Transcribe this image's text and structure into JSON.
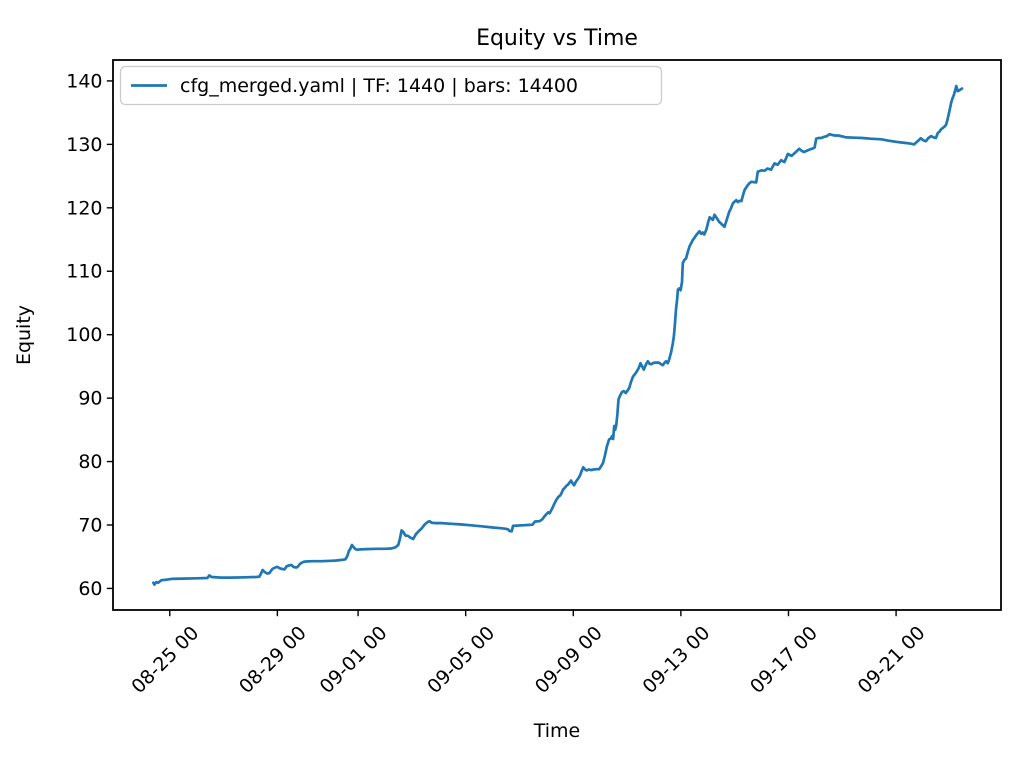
{
  "figure": {
    "title": "Equity vs Time",
    "xlabel": "Time",
    "ylabel": "Equity",
    "background": "#ffffff"
  },
  "legend": {
    "position": "upper left",
    "entries": [
      {
        "label": "cfg_merged.yaml | TF: 1440 | bars: 14400",
        "color": "#1f77b4"
      }
    ]
  },
  "chart_data": {
    "type": "line",
    "title": "Equity vs Time",
    "xlabel": "Time",
    "ylabel": "Equity",
    "grid": false,
    "legend_position": "upper left",
    "x_axis": {
      "note": "x in days, 0 = 08-24 00:00",
      "lim": [
        -1.11,
        31.9
      ],
      "ticks": [
        {
          "x": 1,
          "label": "08-25 00"
        },
        {
          "x": 5,
          "label": "08-29 00"
        },
        {
          "x": 8,
          "label": "09-01 00"
        },
        {
          "x": 12,
          "label": "09-05 00"
        },
        {
          "x": 16,
          "label": "09-09 00"
        },
        {
          "x": 20,
          "label": "09-13 00"
        },
        {
          "x": 24,
          "label": "09-17 00"
        },
        {
          "x": 28,
          "label": "09-21 00"
        }
      ],
      "tick_rotation_deg": 45
    },
    "y_axis": {
      "lim": [
        56.6,
        143.3
      ],
      "ticks": [
        60,
        70,
        80,
        90,
        100,
        110,
        120,
        130,
        140
      ]
    },
    "series": [
      {
        "name": "cfg_merged.yaml | TF: 1440 | bars: 14400",
        "color": "#1f77b4",
        "line_width": 2.7,
        "points": [
          [
            0.39,
            60.9
          ],
          [
            0.43,
            60.6
          ],
          [
            0.5,
            61.0
          ],
          [
            0.57,
            60.9
          ],
          [
            0.69,
            61.3
          ],
          [
            0.9,
            61.4
          ],
          [
            1.06,
            61.5
          ],
          [
            1.5,
            61.55
          ],
          [
            2.0,
            61.6
          ],
          [
            2.4,
            61.65
          ],
          [
            2.47,
            62.05
          ],
          [
            2.55,
            61.8
          ],
          [
            2.9,
            61.7
          ],
          [
            3.29,
            61.7
          ],
          [
            3.8,
            61.75
          ],
          [
            4.2,
            61.8
          ],
          [
            4.33,
            61.85
          ],
          [
            4.4,
            62.4
          ],
          [
            4.45,
            62.9
          ],
          [
            4.52,
            62.6
          ],
          [
            4.62,
            62.35
          ],
          [
            4.7,
            62.4
          ],
          [
            4.82,
            63.1
          ],
          [
            4.95,
            63.35
          ],
          [
            5.0,
            63.4
          ],
          [
            5.1,
            63.15
          ],
          [
            5.2,
            63.05
          ],
          [
            5.26,
            63.0
          ],
          [
            5.35,
            63.5
          ],
          [
            5.45,
            63.65
          ],
          [
            5.52,
            63.7
          ],
          [
            5.6,
            63.4
          ],
          [
            5.68,
            63.3
          ],
          [
            5.74,
            63.35
          ],
          [
            5.85,
            63.9
          ],
          [
            5.95,
            64.15
          ],
          [
            6.05,
            64.25
          ],
          [
            6.3,
            64.3
          ],
          [
            6.64,
            64.3
          ],
          [
            7.0,
            64.35
          ],
          [
            7.19,
            64.4
          ],
          [
            7.4,
            64.5
          ],
          [
            7.53,
            64.6
          ],
          [
            7.6,
            65.1
          ],
          [
            7.66,
            65.9
          ],
          [
            7.72,
            66.3
          ],
          [
            7.77,
            66.85
          ],
          [
            7.82,
            66.6
          ],
          [
            7.9,
            66.2
          ],
          [
            7.97,
            66.1
          ],
          [
            8.1,
            66.15
          ],
          [
            8.31,
            66.2
          ],
          [
            8.7,
            66.25
          ],
          [
            9.0,
            66.25
          ],
          [
            9.24,
            66.3
          ],
          [
            9.4,
            66.5
          ],
          [
            9.5,
            66.9
          ],
          [
            9.56,
            67.9
          ],
          [
            9.62,
            69.15
          ],
          [
            9.68,
            68.9
          ],
          [
            9.76,
            68.35
          ],
          [
            9.85,
            68.3
          ],
          [
            9.95,
            68.0
          ],
          [
            10.05,
            67.8
          ],
          [
            10.15,
            68.55
          ],
          [
            10.25,
            69.0
          ],
          [
            10.35,
            69.4
          ],
          [
            10.48,
            70.1
          ],
          [
            10.58,
            70.45
          ],
          [
            10.65,
            70.6
          ],
          [
            10.75,
            70.35
          ],
          [
            10.9,
            70.3
          ],
          [
            11.1,
            70.3
          ],
          [
            11.4,
            70.2
          ],
          [
            11.8,
            70.1
          ],
          [
            12.2,
            69.95
          ],
          [
            12.6,
            69.8
          ],
          [
            13.0,
            69.6
          ],
          [
            13.3,
            69.5
          ],
          [
            13.5,
            69.4
          ],
          [
            13.58,
            69.3
          ],
          [
            13.63,
            69.05
          ],
          [
            13.71,
            69.0
          ],
          [
            13.76,
            69.85
          ],
          [
            13.9,
            69.9
          ],
          [
            14.1,
            69.95
          ],
          [
            14.3,
            70.0
          ],
          [
            14.48,
            70.05
          ],
          [
            14.58,
            70.55
          ],
          [
            14.75,
            70.6
          ],
          [
            14.85,
            70.9
          ],
          [
            14.92,
            71.3
          ],
          [
            15.0,
            71.7
          ],
          [
            15.07,
            72.0
          ],
          [
            15.12,
            71.85
          ],
          [
            15.18,
            72.3
          ],
          [
            15.24,
            72.8
          ],
          [
            15.29,
            73.3
          ],
          [
            15.36,
            73.9
          ],
          [
            15.44,
            74.4
          ],
          [
            15.5,
            74.6
          ],
          [
            15.55,
            74.9
          ],
          [
            15.62,
            75.6
          ],
          [
            15.68,
            75.85
          ],
          [
            15.75,
            76.2
          ],
          [
            15.81,
            76.4
          ],
          [
            15.88,
            76.8
          ],
          [
            15.92,
            77.0
          ],
          [
            15.97,
            76.6
          ],
          [
            16.03,
            76.25
          ],
          [
            16.1,
            76.85
          ],
          [
            16.18,
            77.3
          ],
          [
            16.25,
            77.8
          ],
          [
            16.31,
            78.5
          ],
          [
            16.37,
            79.1
          ],
          [
            16.44,
            78.75
          ],
          [
            16.5,
            78.6
          ],
          [
            16.58,
            78.75
          ],
          [
            16.66,
            78.65
          ],
          [
            16.76,
            78.75
          ],
          [
            16.86,
            78.8
          ],
          [
            16.96,
            78.8
          ],
          [
            17.04,
            79.3
          ],
          [
            17.11,
            79.8
          ],
          [
            17.18,
            81.0
          ],
          [
            17.25,
            82.4
          ],
          [
            17.33,
            83.5
          ],
          [
            17.39,
            83.6
          ],
          [
            17.44,
            84.0
          ],
          [
            17.48,
            83.55
          ],
          [
            17.52,
            85.6
          ],
          [
            17.56,
            85.0
          ],
          [
            17.6,
            85.8
          ],
          [
            17.64,
            87.5
          ],
          [
            17.68,
            89.8
          ],
          [
            17.75,
            90.5
          ],
          [
            17.82,
            91.0
          ],
          [
            17.88,
            91.1
          ],
          [
            17.95,
            90.8
          ],
          [
            18.02,
            91.2
          ],
          [
            18.08,
            91.6
          ],
          [
            18.15,
            92.6
          ],
          [
            18.22,
            93.4
          ],
          [
            18.33,
            94.0
          ],
          [
            18.43,
            94.7
          ],
          [
            18.5,
            95.5
          ],
          [
            18.56,
            95.0
          ],
          [
            18.62,
            94.5
          ],
          [
            18.7,
            95.3
          ],
          [
            18.77,
            95.8
          ],
          [
            18.84,
            95.4
          ],
          [
            18.9,
            95.35
          ],
          [
            18.98,
            95.55
          ],
          [
            19.08,
            95.6
          ],
          [
            19.18,
            95.6
          ],
          [
            19.26,
            95.35
          ],
          [
            19.33,
            95.2
          ],
          [
            19.4,
            95.6
          ],
          [
            19.45,
            95.8
          ],
          [
            19.51,
            95.5
          ],
          [
            19.56,
            96.0
          ],
          [
            19.64,
            97.3
          ],
          [
            19.7,
            98.6
          ],
          [
            19.74,
            99.8
          ],
          [
            19.78,
            101.8
          ],
          [
            19.82,
            104.0
          ],
          [
            19.86,
            105.5
          ],
          [
            19.89,
            107.1
          ],
          [
            19.94,
            107.3
          ],
          [
            19.99,
            107.0
          ],
          [
            20.04,
            108.3
          ],
          [
            20.07,
            111.3
          ],
          [
            20.1,
            111.5
          ],
          [
            20.13,
            111.8
          ],
          [
            20.19,
            112.0
          ],
          [
            20.26,
            113.1
          ],
          [
            20.32,
            113.9
          ],
          [
            20.38,
            114.4
          ],
          [
            20.44,
            114.9
          ],
          [
            20.51,
            115.3
          ],
          [
            20.57,
            115.7
          ],
          [
            20.63,
            116.0
          ],
          [
            20.69,
            116.3
          ],
          [
            20.75,
            115.9
          ],
          [
            20.81,
            116.1
          ],
          [
            20.87,
            115.8
          ],
          [
            20.95,
            116.6
          ],
          [
            21.02,
            117.8
          ],
          [
            21.07,
            118.5
          ],
          [
            21.13,
            118.3
          ],
          [
            21.19,
            118.1
          ],
          [
            21.25,
            118.9
          ],
          [
            21.33,
            118.4
          ],
          [
            21.42,
            117.8
          ],
          [
            21.52,
            117.4
          ],
          [
            21.62,
            117.0
          ],
          [
            21.71,
            118.2
          ],
          [
            21.8,
            119.4
          ],
          [
            21.87,
            120.0
          ],
          [
            21.93,
            120.7
          ],
          [
            22.0,
            121.0
          ],
          [
            22.06,
            121.2
          ],
          [
            22.12,
            120.9
          ],
          [
            22.18,
            121.1
          ],
          [
            22.25,
            121.05
          ],
          [
            22.31,
            122.0
          ],
          [
            22.37,
            122.8
          ],
          [
            22.43,
            123.2
          ],
          [
            22.49,
            123.6
          ],
          [
            22.55,
            123.9
          ],
          [
            22.62,
            124.1
          ],
          [
            22.7,
            124.05
          ],
          [
            22.8,
            124.0
          ],
          [
            22.86,
            125.7
          ],
          [
            22.93,
            125.8
          ],
          [
            23.0,
            125.9
          ],
          [
            23.12,
            125.85
          ],
          [
            23.22,
            126.2
          ],
          [
            23.35,
            126.0
          ],
          [
            23.48,
            127.0
          ],
          [
            23.6,
            126.8
          ],
          [
            23.73,
            127.5
          ],
          [
            23.85,
            127.2
          ],
          [
            23.92,
            127.9
          ],
          [
            23.98,
            128.5
          ],
          [
            24.06,
            128.3
          ],
          [
            24.12,
            128.2
          ],
          [
            24.25,
            128.7
          ],
          [
            24.4,
            129.3
          ],
          [
            24.5,
            128.95
          ],
          [
            24.58,
            128.8
          ],
          [
            24.68,
            129.0
          ],
          [
            24.8,
            129.2
          ],
          [
            24.9,
            129.35
          ],
          [
            24.97,
            129.5
          ],
          [
            25.03,
            130.9
          ],
          [
            25.12,
            131.0
          ],
          [
            25.22,
            131.0
          ],
          [
            25.33,
            131.2
          ],
          [
            25.43,
            131.3
          ],
          [
            25.52,
            131.6
          ],
          [
            25.62,
            131.5
          ],
          [
            25.72,
            131.4
          ],
          [
            25.85,
            131.4
          ],
          [
            26.0,
            131.25
          ],
          [
            26.15,
            131.1
          ],
          [
            26.45,
            131.05
          ],
          [
            26.75,
            131.0
          ],
          [
            27.05,
            130.9
          ],
          [
            27.45,
            130.8
          ],
          [
            27.7,
            130.6
          ],
          [
            28.0,
            130.4
          ],
          [
            28.2,
            130.3
          ],
          [
            28.4,
            130.2
          ],
          [
            28.55,
            130.1
          ],
          [
            28.67,
            130.0
          ],
          [
            28.8,
            130.5
          ],
          [
            28.92,
            130.95
          ],
          [
            29.03,
            130.6
          ],
          [
            29.11,
            130.5
          ],
          [
            29.2,
            131.0
          ],
          [
            29.3,
            131.3
          ],
          [
            29.4,
            131.1
          ],
          [
            29.48,
            131.0
          ],
          [
            29.55,
            131.8
          ],
          [
            29.61,
            132.0
          ],
          [
            29.68,
            132.4
          ],
          [
            29.74,
            132.6
          ],
          [
            29.8,
            132.8
          ],
          [
            29.86,
            133.1
          ],
          [
            29.91,
            133.9
          ],
          [
            29.95,
            134.6
          ],
          [
            30.0,
            135.6
          ],
          [
            30.05,
            136.6
          ],
          [
            30.1,
            137.3
          ],
          [
            30.15,
            137.8
          ],
          [
            30.2,
            138.6
          ],
          [
            30.24,
            139.2
          ],
          [
            30.29,
            138.4
          ],
          [
            30.35,
            138.5
          ],
          [
            30.45,
            138.8
          ]
        ]
      }
    ]
  }
}
